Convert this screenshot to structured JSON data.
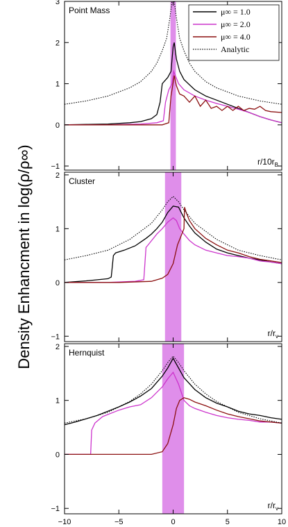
{
  "figure": {
    "ylabel": "Density Enhancment in log(ρ/ρ∞)"
  },
  "legend": {
    "placement": "top-right",
    "entries": [
      {
        "label": "μ∞ = 1.0",
        "color": "#000000",
        "dash": false
      },
      {
        "label": "μ∞ = 2.0",
        "color": "#cc33cc",
        "dash": false
      },
      {
        "label": "μ∞ = 4.0",
        "color": "#8b0f0f",
        "dash": false
      },
      {
        "label": "Analytic",
        "color": "#000000",
        "dash": true
      }
    ]
  },
  "colors": {
    "black": "#000000",
    "magenta": "#cc33cc",
    "darkred": "#8b0f0f",
    "band": "#d97ae6"
  },
  "chart_data": [
    {
      "type": "line",
      "title": "Point Mass",
      "xlabel_corner": "r/10r",
      "xlabel_sub": "B",
      "xlim": [
        -10,
        10
      ],
      "ylim": [
        -1.1,
        3.0
      ],
      "yticks": [
        -1,
        0,
        1,
        2,
        3
      ],
      "xticks": [],
      "shaded_band": [
        -0.25,
        0.25
      ],
      "series": [
        {
          "name": "μ∞ = 1.0",
          "color": "#000000",
          "dash": false,
          "x": [
            -10,
            -8,
            -6,
            -4,
            -3,
            -2,
            -1.5,
            -1.2,
            -1.0,
            -0.5,
            -0.2,
            0.0,
            0.1,
            0.3,
            0.6,
            1.0,
            2,
            3,
            4,
            5,
            6,
            7,
            8,
            9,
            10
          ],
          "y": [
            0.0,
            0.01,
            0.02,
            0.05,
            0.08,
            0.15,
            0.25,
            0.55,
            1.0,
            1.15,
            1.3,
            1.9,
            2.0,
            1.6,
            1.3,
            1.1,
            0.85,
            0.7,
            0.6,
            0.5,
            0.4,
            0.3,
            0.2,
            0.12,
            0.05
          ]
        },
        {
          "name": "μ∞ = 2.0",
          "color": "#cc33cc",
          "dash": false,
          "x": [
            -10,
            -6,
            -3,
            -1.5,
            -0.9,
            -0.7,
            -0.4,
            -0.1,
            0.05,
            0.2,
            0.5,
            1,
            2,
            3,
            4,
            5,
            6,
            7,
            8,
            9,
            10
          ],
          "y": [
            0.0,
            0.0,
            0.02,
            0.05,
            0.1,
            0.55,
            0.85,
            1.0,
            1.3,
            1.2,
            1.0,
            0.85,
            0.7,
            0.6,
            0.52,
            0.45,
            0.38,
            0.3,
            0.2,
            0.12,
            0.05
          ]
        },
        {
          "name": "μ∞ = 4.0",
          "color": "#8b0f0f",
          "dash": false,
          "x": [
            -10,
            -4,
            -1,
            -0.4,
            -0.2,
            -0.1,
            0.1,
            0.3,
            0.6,
            1.0,
            1.5,
            2.0,
            2.5,
            3.0,
            3.5,
            4.0,
            4.5,
            5.0,
            5.5,
            6.0,
            6.5,
            7.0,
            7.5,
            8.0,
            8.5,
            9.0,
            10
          ],
          "y": [
            0.0,
            0.0,
            0.0,
            0.05,
            0.7,
            0.85,
            1.2,
            0.95,
            0.75,
            0.7,
            0.55,
            0.7,
            0.45,
            0.6,
            0.4,
            0.45,
            0.35,
            0.45,
            0.35,
            0.45,
            0.35,
            0.4,
            0.38,
            0.45,
            0.35,
            0.32,
            0.3
          ]
        },
        {
          "name": "Analytic",
          "color": "#000000",
          "dash": true,
          "x": [
            -10,
            -8,
            -6,
            -4,
            -3,
            -2,
            -1.5,
            -1,
            -0.6,
            -0.3,
            -0.1,
            0,
            0.1,
            0.3,
            0.6,
            1,
            1.5,
            2,
            3,
            4,
            6,
            8,
            10
          ],
          "y": [
            0.5,
            0.58,
            0.7,
            0.9,
            1.05,
            1.3,
            1.5,
            1.8,
            2.1,
            2.6,
            3.0,
            3.2,
            3.0,
            2.6,
            2.1,
            1.8,
            1.5,
            1.3,
            1.05,
            0.9,
            0.7,
            0.58,
            0.5
          ]
        }
      ]
    },
    {
      "type": "line",
      "title": "Cluster",
      "xlabel_corner": "r/r",
      "xlabel_sub": "v",
      "xlim": [
        -10,
        10
      ],
      "ylim": [
        -1.1,
        2.05
      ],
      "yticks": [
        -1,
        0,
        1,
        2
      ],
      "xticks": [],
      "shaded_band": [
        -0.75,
        0.75
      ],
      "series": [
        {
          "name": "μ∞ = 1.0",
          "color": "#000000",
          "dash": false,
          "x": [
            -10,
            -8,
            -6,
            -5.7,
            -5.5,
            -5.3,
            -4.5,
            -3.5,
            -3,
            -2.5,
            -2,
            -1.5,
            -1,
            -0.5,
            0,
            0.5,
            1,
            1.5,
            2,
            3,
            4,
            5,
            6,
            7,
            8,
            9,
            10
          ],
          "y": [
            0.0,
            0.03,
            0.07,
            0.1,
            0.5,
            0.55,
            0.6,
            0.68,
            0.75,
            0.82,
            0.9,
            1.0,
            1.12,
            1.3,
            1.42,
            1.4,
            1.2,
            1.05,
            0.92,
            0.75,
            0.62,
            0.55,
            0.5,
            0.45,
            0.42,
            0.38,
            0.35
          ]
        },
        {
          "name": "μ∞ = 2.0",
          "color": "#cc33cc",
          "dash": false,
          "x": [
            -10,
            -6,
            -3.5,
            -2.7,
            -2.5,
            -2.3,
            -1.5,
            -1,
            -0.5,
            0,
            0.3,
            0.6,
            1,
            1.5,
            2,
            3,
            4,
            5,
            6,
            7,
            8,
            9,
            10
          ],
          "y": [
            0.0,
            0.0,
            0.02,
            0.05,
            0.65,
            0.7,
            0.9,
            1.0,
            1.12,
            1.2,
            1.15,
            1.0,
            0.9,
            0.78,
            0.7,
            0.6,
            0.55,
            0.5,
            0.48,
            0.45,
            0.4,
            0.38,
            0.35
          ]
        },
        {
          "name": "μ∞ = 4.0",
          "color": "#8b0f0f",
          "dash": false,
          "x": [
            -10,
            -5,
            -2,
            -1,
            -0.5,
            0,
            0.4,
            0.8,
            1.0,
            1.05,
            1.2,
            1.5,
            2,
            3,
            4,
            5,
            6,
            7,
            8,
            9,
            10
          ],
          "y": [
            0.0,
            0.0,
            0.02,
            0.08,
            0.15,
            0.35,
            0.7,
            0.9,
            1.0,
            1.4,
            1.3,
            1.15,
            1.0,
            0.82,
            0.7,
            0.6,
            0.55,
            0.48,
            0.43,
            0.4,
            0.37
          ]
        },
        {
          "name": "Analytic",
          "color": "#000000",
          "dash": true,
          "x": [
            -10,
            -8,
            -6,
            -4,
            -3,
            -2,
            -1,
            -0.5,
            0,
            0.5,
            1,
            2,
            3,
            4,
            6,
            8,
            10
          ],
          "y": [
            0.42,
            0.5,
            0.6,
            0.8,
            0.95,
            1.1,
            1.35,
            1.5,
            1.6,
            1.5,
            1.35,
            1.1,
            0.95,
            0.8,
            0.6,
            0.5,
            0.42
          ]
        }
      ]
    },
    {
      "type": "line",
      "title": "Hernquist",
      "xlabel_corner": "r/r",
      "xlabel_sub": "v",
      "xlim": [
        -10,
        10
      ],
      "ylim": [
        -1.1,
        2.05
      ],
      "yticks": [
        -1,
        0,
        1,
        2
      ],
      "xticks": [
        -10,
        -5,
        0,
        5,
        10
      ],
      "shaded_band": [
        -1.0,
        1.0
      ],
      "series": [
        {
          "name": "μ∞ = 1.0",
          "color": "#000000",
          "dash": false,
          "x": [
            -10,
            -9,
            -8,
            -7,
            -6,
            -5,
            -4,
            -3,
            -2,
            -1,
            -0.5,
            0,
            0.5,
            1,
            2,
            3,
            4,
            5,
            6,
            7,
            8,
            9,
            10
          ],
          "y": [
            0.55,
            0.6,
            0.66,
            0.72,
            0.8,
            0.88,
            0.97,
            1.08,
            1.22,
            1.45,
            1.6,
            1.78,
            1.6,
            1.42,
            1.2,
            1.05,
            0.95,
            0.88,
            0.8,
            0.75,
            0.72,
            0.68,
            0.65
          ]
        },
        {
          "name": "μ∞ = 2.0",
          "color": "#cc33cc",
          "dash": false,
          "x": [
            -10,
            -9,
            -8,
            -7.6,
            -7.5,
            -7.2,
            -6.5,
            -5,
            -4,
            -3,
            -2,
            -1,
            -0.5,
            0,
            0.5,
            1,
            1.5,
            2,
            3,
            4,
            5,
            6,
            7,
            8,
            9,
            10
          ],
          "y": [
            0.0,
            0.0,
            0.0,
            0.0,
            0.45,
            0.58,
            0.7,
            0.82,
            0.88,
            0.92,
            1.05,
            1.25,
            1.4,
            1.52,
            1.3,
            1.0,
            0.9,
            0.85,
            0.78,
            0.72,
            0.68,
            0.65,
            0.63,
            0.6,
            0.6,
            0.58
          ]
        },
        {
          "name": "μ∞ = 4.0",
          "color": "#8b0f0f",
          "dash": false,
          "x": [
            -10,
            -5,
            -2,
            -1,
            -0.5,
            0,
            0.3,
            0.6,
            1.0,
            1.5,
            2,
            3,
            4,
            5,
            6,
            7,
            8,
            9,
            10
          ],
          "y": [
            0.0,
            0.0,
            0.0,
            0.05,
            0.2,
            0.55,
            0.85,
            1.0,
            1.05,
            1.02,
            0.97,
            0.9,
            0.82,
            0.75,
            0.7,
            0.66,
            0.62,
            0.6,
            0.58
          ]
        },
        {
          "name": "Analytic",
          "color": "#000000",
          "dash": true,
          "x": [
            -10,
            -8,
            -6,
            -4,
            -3,
            -2,
            -1,
            -0.5,
            0,
            0.5,
            1,
            2,
            3,
            4,
            6,
            8,
            10
          ],
          "y": [
            0.58,
            0.66,
            0.78,
            0.98,
            1.12,
            1.3,
            1.55,
            1.7,
            1.82,
            1.7,
            1.55,
            1.3,
            1.12,
            0.98,
            0.78,
            0.66,
            0.58
          ]
        }
      ]
    }
  ]
}
